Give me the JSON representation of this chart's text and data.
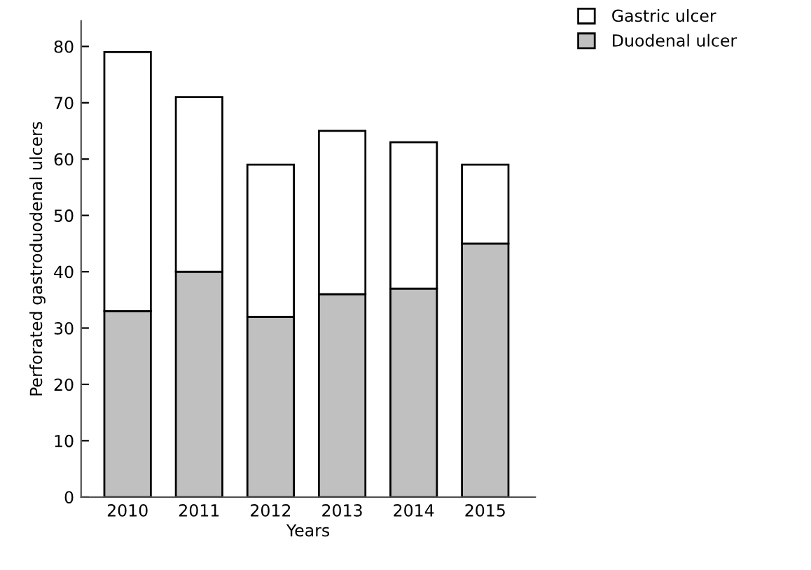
{
  "chart_data": {
    "type": "bar",
    "stacked": true,
    "xlabel": "Years",
    "ylabel": "Perforated gastroduodenal ulcers",
    "categories": [
      "2010",
      "2011",
      "2012",
      "2013",
      "2014",
      "2015"
    ],
    "series": [
      {
        "name": "Duodenal ulcer",
        "color": "#c0c0c0",
        "values": [
          33,
          40,
          32,
          36,
          37,
          45
        ]
      },
      {
        "name": "Gastric ulcer",
        "color": "#ffffff",
        "values": [
          46,
          31,
          27,
          29,
          26,
          14
        ]
      }
    ],
    "ylim": [
      0,
      84.5
    ],
    "yticks": [
      0,
      10,
      20,
      30,
      40,
      50,
      60,
      70,
      80
    ],
    "grid": false,
    "legend": "top right"
  }
}
